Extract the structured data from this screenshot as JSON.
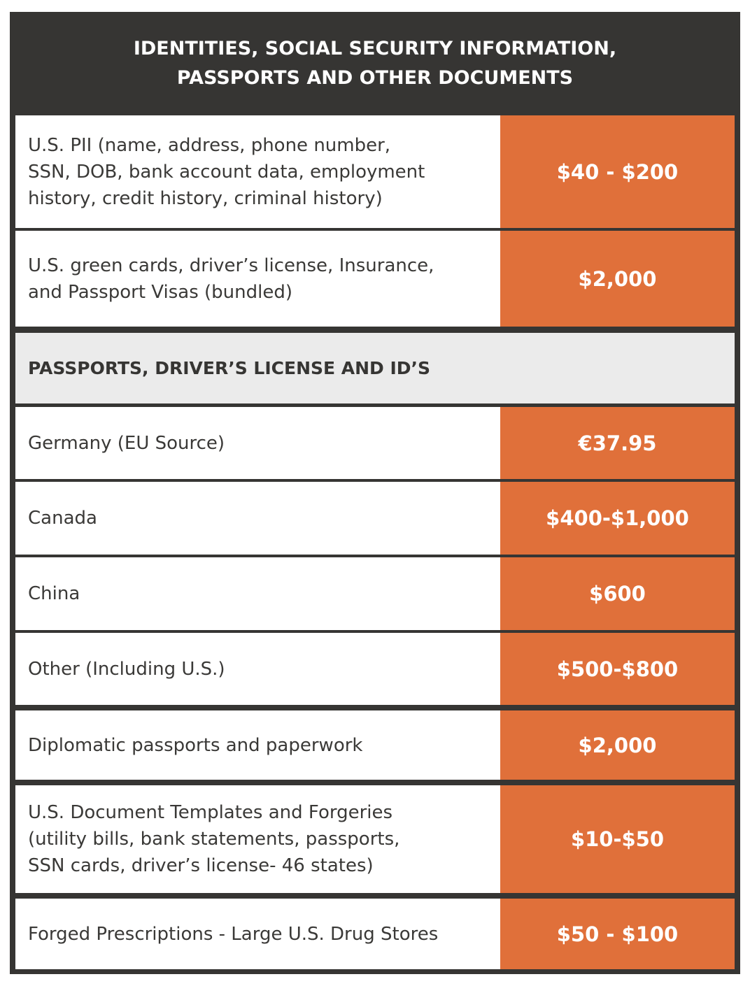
{
  "header": {
    "line1": "IDENTITIES, SOCIAL SECURITY INFORMATION,",
    "line2": "PASSPORTS AND OTHER DOCUMENTS"
  },
  "rows_top": [
    {
      "label_lines": [
        "U.S. PII (name, address, phone number,",
        "SSN, DOB, bank account data, employment",
        "history, credit history, criminal history)"
      ],
      "price": "$40 - $200"
    },
    {
      "label_lines": [
        "U.S. green cards, driver’s license, Insurance,",
        "and Passport Visas (bundled)"
      ],
      "price": "$2,000"
    }
  ],
  "section": {
    "title": "PASSPORTS, DRIVER’S LICENSE AND ID’S"
  },
  "rows_bottom": [
    {
      "label_lines": [
        "Germany (EU Source)"
      ],
      "price": "€37.95"
    },
    {
      "label_lines": [
        "Canada"
      ],
      "price": "$400-$1,000"
    },
    {
      "label_lines": [
        "China"
      ],
      "price": "$600"
    },
    {
      "label_lines": [
        "Other (Including U.S.)"
      ],
      "price": "$500-$800"
    },
    {
      "label_lines": [
        "Diplomatic passports and paperwork"
      ],
      "price": "$2,000"
    },
    {
      "label_lines": [
        "U.S. Document Templates and Forgeries",
        "(utility bills, bank statements, passports,",
        "SSN cards, driver’s license- 46 states)"
      ],
      "price": "$10-$50"
    },
    {
      "label_lines": [
        "Forged Prescriptions - Large U.S. Drug Stores"
      ],
      "price": "$50 - $100"
    }
  ],
  "colors": {
    "frame": "#363533",
    "price_bg": "#e0703a",
    "section_bg": "#ebebeb",
    "text": "#3a3937"
  }
}
